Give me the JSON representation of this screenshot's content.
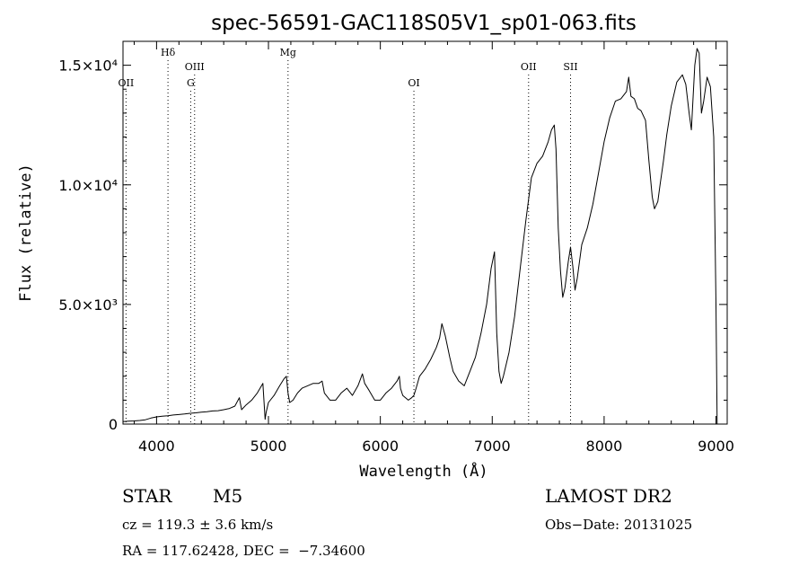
{
  "chart_data": {
    "type": "line",
    "title": "spec-56591-GAC118S05V1_sp01-063.fits",
    "xlabel": "Wavelength (Å)",
    "ylabel": "Flux (relative)",
    "xlim": [
      3700,
      9100
    ],
    "ylim": [
      0,
      16000
    ],
    "x_ticks": [
      {
        "value": 4000,
        "label": "4000"
      },
      {
        "value": 5000,
        "label": "5000"
      },
      {
        "value": 6000,
        "label": "6000"
      },
      {
        "value": 7000,
        "label": "7000"
      },
      {
        "value": 8000,
        "label": "8000"
      },
      {
        "value": 9000,
        "label": "9000"
      }
    ],
    "y_ticks": [
      {
        "value": 0,
        "label": "0"
      },
      {
        "value": 5000,
        "label": "5.0×10³"
      },
      {
        "value": 10000,
        "label": "1.0×10⁴"
      },
      {
        "value": 15000,
        "label": "1.5×10⁴"
      }
    ],
    "lines": [
      {
        "label": "OII",
        "x": 3727,
        "level": 1
      },
      {
        "label": "Hδ",
        "x": 4102,
        "level": 3
      },
      {
        "label": "G",
        "x": 4305,
        "level": 1
      },
      {
        "label": "OIII",
        "x": 4340,
        "level": 2
      },
      {
        "label": "Mg",
        "x": 5175,
        "level": 3
      },
      {
        "label": "OI",
        "x": 6300,
        "level": 1
      },
      {
        "label": "OII",
        "x": 7325,
        "level": 2
      },
      {
        "label": "SII",
        "x": 7700,
        "level": 2
      }
    ],
    "series": [
      {
        "x": [
          3700,
          3750,
          3800,
          3850,
          3900,
          3950,
          4000,
          4050,
          4100,
          4150,
          4200,
          4250,
          4300,
          4350,
          4400,
          4450,
          4500,
          4550,
          4600,
          4650,
          4700,
          4740,
          4760,
          4800,
          4850,
          4900,
          4950,
          4970,
          4980,
          5000,
          5050,
          5100,
          5140,
          5160,
          5175,
          5190,
          5220,
          5260,
          5300,
          5350,
          5400,
          5450,
          5480,
          5500,
          5550,
          5600,
          5650,
          5700,
          5750,
          5800,
          5840,
          5860,
          5900,
          5950,
          6000,
          6050,
          6100,
          6150,
          6170,
          6180,
          6200,
          6250,
          6280,
          6300,
          6320,
          6350,
          6400,
          6450,
          6500,
          6530,
          6550,
          6580,
          6620,
          6650,
          6700,
          6750,
          6800,
          6850,
          6900,
          6950,
          6990,
          7020,
          7040,
          7060,
          7080,
          7100,
          7150,
          7200,
          7250,
          7300,
          7350,
          7400,
          7450,
          7500,
          7530,
          7555,
          7570,
          7590,
          7610,
          7630,
          7650,
          7680,
          7700,
          7720,
          7740,
          7760,
          7800,
          7850,
          7900,
          7950,
          8000,
          8050,
          8100,
          8150,
          8200,
          8220,
          8240,
          8270,
          8300,
          8330,
          8370,
          8400,
          8430,
          8450,
          8480,
          8500,
          8530,
          8560,
          8600,
          8650,
          8700,
          8730,
          8760,
          8780,
          8810,
          8830,
          8850,
          8870,
          8890,
          8920,
          8950,
          8980,
          9000,
          9010
        ],
        "y": [
          100,
          120,
          130,
          150,
          180,
          250,
          300,
          330,
          350,
          380,
          400,
          420,
          450,
          470,
          500,
          520,
          550,
          560,
          600,
          650,
          750,
          1100,
          600,
          800,
          1000,
          1300,
          1700,
          200,
          500,
          900,
          1200,
          1600,
          1900,
          2000,
          1300,
          900,
          1000,
          1300,
          1500,
          1600,
          1700,
          1700,
          1800,
          1300,
          1000,
          1000,
          1300,
          1500,
          1200,
          1600,
          2100,
          1700,
          1400,
          1000,
          1000,
          1300,
          1500,
          1800,
          2000,
          1500,
          1200,
          1000,
          1100,
          1200,
          1500,
          2000,
          2300,
          2700,
          3200,
          3600,
          4200,
          3700,
          2800,
          2200,
          1800,
          1600,
          2200,
          2800,
          3800,
          5000,
          6500,
          7200,
          3800,
          2200,
          1700,
          2000,
          3000,
          4500,
          6500,
          8500,
          10300,
          10900,
          11200,
          11800,
          12300,
          12500,
          11500,
          8200,
          6400,
          5300,
          5700,
          6800,
          7400,
          6600,
          5600,
          6100,
          7500,
          8200,
          9200,
          10500,
          11800,
          12800,
          13500,
          13600,
          13900,
          14500,
          13700,
          13600,
          13200,
          13100,
          12700,
          11000,
          9500,
          9000,
          9300,
          10000,
          11000,
          12100,
          13300,
          14300,
          14600,
          14200,
          13000,
          12300,
          15000,
          15700,
          15500,
          13000,
          13500,
          14500,
          14100,
          12000,
          5000,
          0
        ]
      }
    ]
  },
  "info": {
    "object_class": "STAR",
    "subclass": "M5",
    "survey": "LAMOST DR2",
    "cz": "cz = 119.3 ± 3.6 km/s",
    "obs_date": "Obs−Date: 20131025",
    "coords": "RA = 117.62428, DEC =  −7.34600"
  }
}
